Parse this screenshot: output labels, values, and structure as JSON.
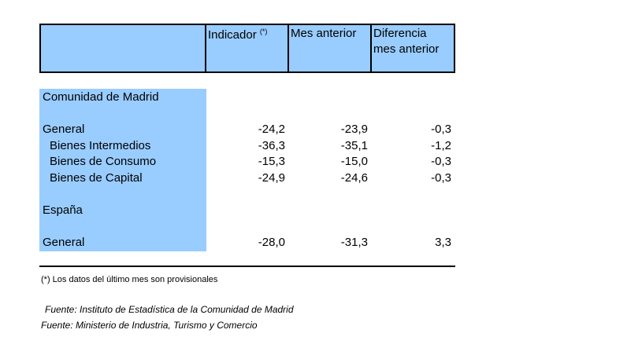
{
  "header": {
    "col_indicador": "Indicador",
    "col_indicador_sup": "(*)",
    "col_mes_anterior": "Mes anterior",
    "col_diferencia_line1": "Diferencia",
    "col_diferencia_line2": "mes anterior"
  },
  "sections": [
    {
      "title": "Comunidad de Madrid",
      "rows": [
        {
          "label": "General",
          "indicador": "-24,2",
          "mes_anterior": "-23,9",
          "diferencia": "-0,3"
        },
        {
          "label": "Bienes Intermedios",
          "indicador": "-36,3",
          "mes_anterior": "-35,1",
          "diferencia": "-1,2"
        },
        {
          "label": "Bienes de Consumo",
          "indicador": "-15,3",
          "mes_anterior": "-15,0",
          "diferencia": "-0,3"
        },
        {
          "label": "Bienes de Capital",
          "indicador": "-24,9",
          "mes_anterior": "-24,6",
          "diferencia": "-0,3"
        }
      ]
    },
    {
      "title": "España",
      "rows": [
        {
          "label": "General",
          "indicador": "-28,0",
          "mes_anterior": "-31,3",
          "diferencia": "3,3"
        }
      ]
    }
  ],
  "footnote": "(*) Los datos del último mes son provisionales",
  "sources": [
    "Fuente: Instituto de Estadística de la Comunidad de Madrid",
    "Fuente: Ministerio de Industria, Turismo y Comercio"
  ],
  "colors": {
    "header_fill": "#99ccff",
    "label_fill": "#99ccff"
  }
}
